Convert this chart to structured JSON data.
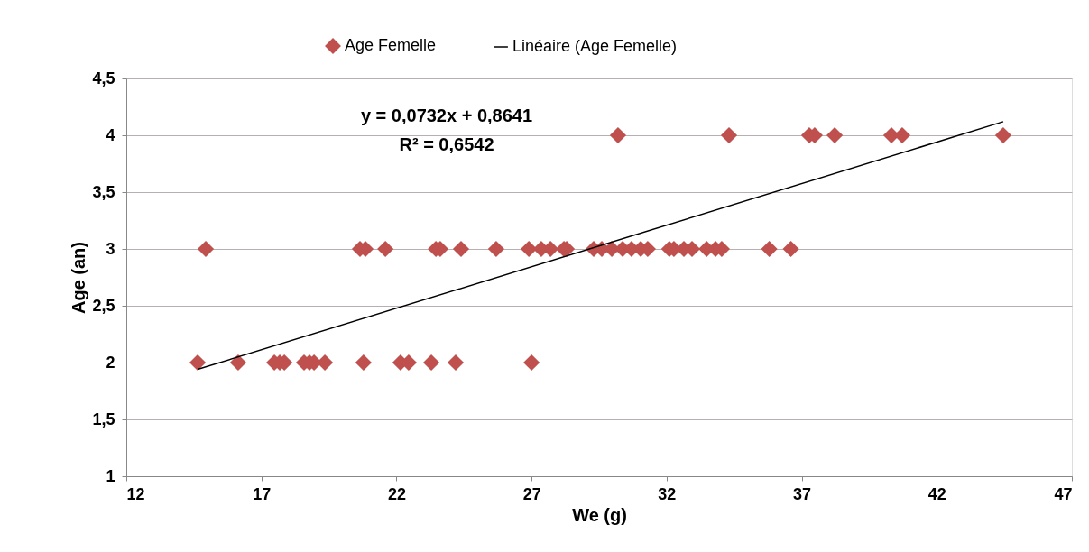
{
  "chart_data": {
    "type": "scatter",
    "xlabel": "We (g)",
    "ylabel": "Age (an)",
    "xlim": [
      12,
      47
    ],
    "xticks": [
      12,
      17,
      22,
      27,
      32,
      37,
      42,
      47
    ],
    "ylim": [
      1,
      4.5
    ],
    "yticks": [
      1,
      {
        "value": 1.5,
        "label": "1,5"
      },
      2,
      {
        "value": 2.5,
        "label": "2,5"
      },
      3,
      {
        "value": 3.5,
        "label": "3,5"
      },
      4,
      {
        "value": 4.5,
        "label": "4,5"
      }
    ],
    "grid": "y",
    "legend": "top",
    "annotations": [
      "y = 0,0732x + 0,8641",
      "R² = 0,6542"
    ],
    "series": [
      {
        "name": "Age Femelle",
        "color": "#c0504d",
        "marker": "diamond",
        "x": [
          14.64,
          16.14,
          17.48,
          17.68,
          17.85,
          18.58,
          18.78,
          18.95,
          19.35,
          20.78,
          22.15,
          22.45,
          23.29,
          24.19,
          27.0,
          14.94,
          20.65,
          20.85,
          21.59,
          23.46,
          23.62,
          24.39,
          25.69,
          26.9,
          27.36,
          27.7,
          28.2,
          28.3,
          29.3,
          29.6,
          29.97,
          30.37,
          30.7,
          31.04,
          31.3,
          32.1,
          32.27,
          32.64,
          32.94,
          33.48,
          33.81,
          34.04,
          35.8,
          36.6,
          30.2,
          34.31,
          37.28,
          37.48,
          38.22,
          40.32,
          40.72,
          44.46
        ],
        "values": [
          2,
          2,
          2,
          2,
          2,
          2,
          2,
          2,
          2,
          2,
          2,
          2,
          2,
          2,
          2,
          3,
          3,
          3,
          3,
          3,
          3,
          3,
          3,
          3,
          3,
          3,
          3,
          3,
          3,
          3,
          3,
          3,
          3,
          3,
          3,
          3,
          3,
          3,
          3,
          3,
          3,
          3,
          3,
          3,
          4,
          4,
          4,
          4,
          4,
          4,
          4,
          4
        ]
      },
      {
        "name": "Linéaire (Age Femelle)",
        "color": "#000000",
        "type": "line",
        "x": [
          14.64,
          44.46
        ],
        "values": [
          1.94,
          4.12
        ]
      }
    ]
  }
}
